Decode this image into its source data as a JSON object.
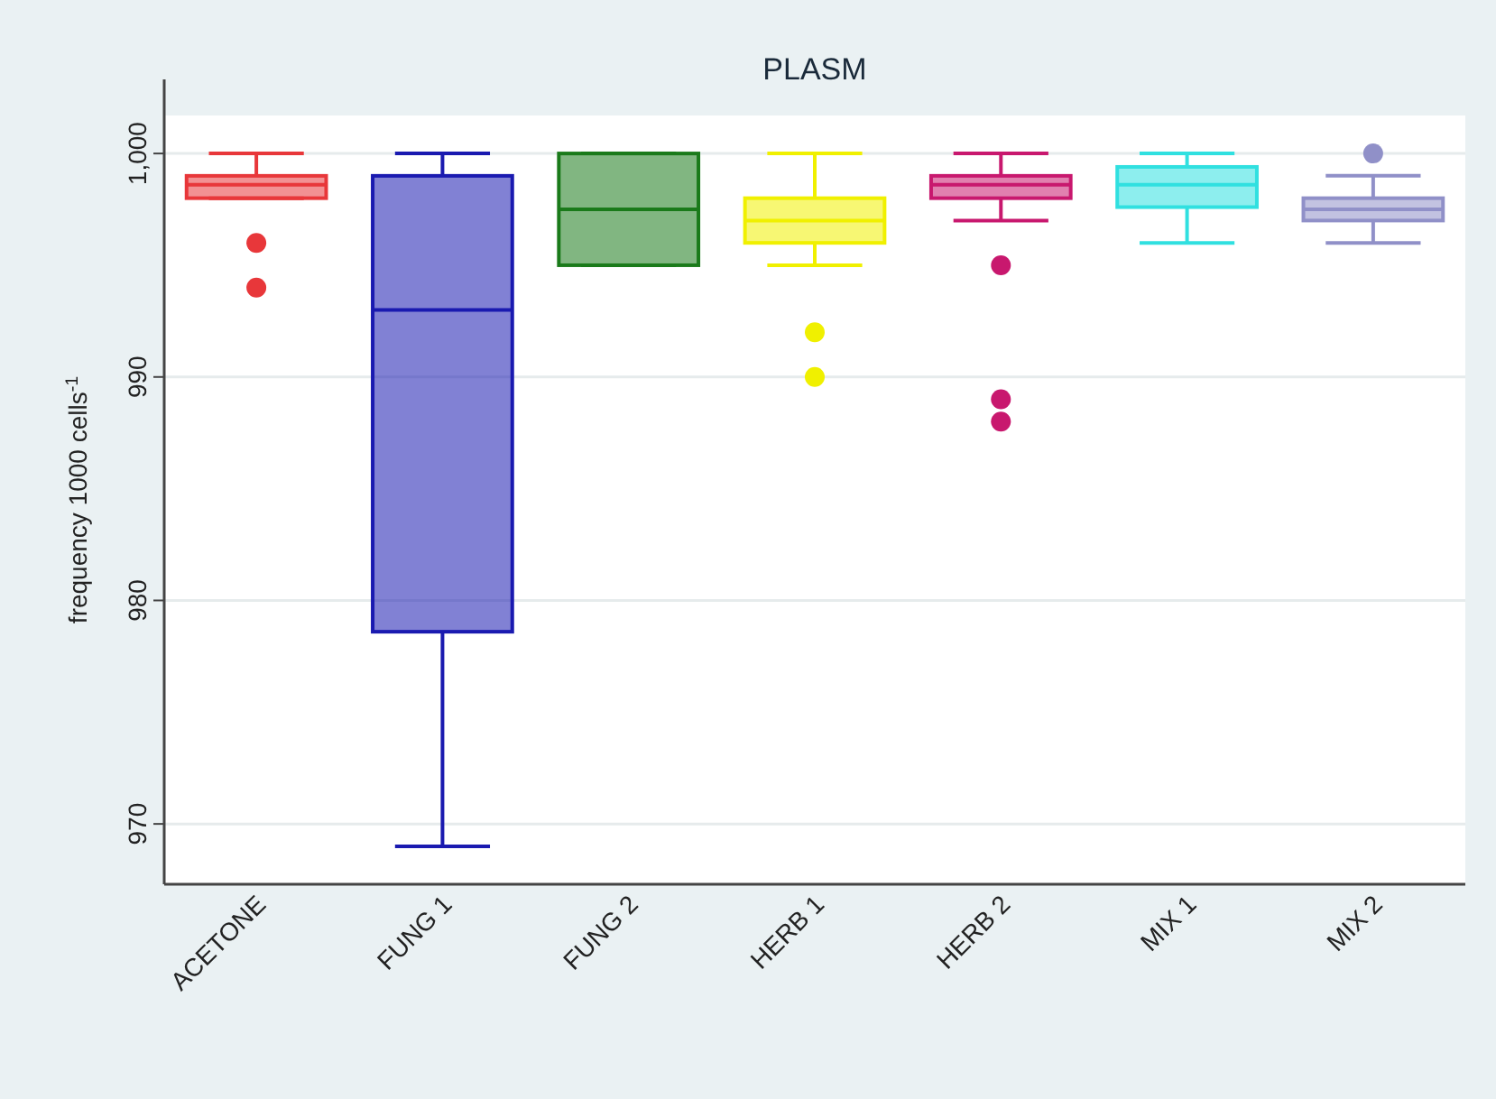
{
  "chart_data": {
    "type": "box",
    "title": "PLASM",
    "ylabel": "frequency 1000 cells$^{-1}$",
    "categories": [
      "ACETONE",
      "FUNG 1",
      "FUNG 2",
      "HERB 1",
      "HERB 2",
      "MIX 1",
      "MIX 2"
    ],
    "colors": [
      "#e8373a",
      "#1a1ab0",
      "#1a7a1a",
      "#f0f000",
      "#c8186e",
      "#30e0e0",
      "#9090c8"
    ],
    "boxes": [
      {
        "low": 998,
        "q1": 998,
        "median": 998.6,
        "q3": 999,
        "high": 1000,
        "outliers": [
          996,
          994
        ]
      },
      {
        "low": 969,
        "q1": 978.6,
        "median": 993,
        "q3": 999,
        "high": 1000
      },
      {
        "low": 995,
        "q1": 995,
        "median": 997.5,
        "q3": 1000,
        "high": 1000
      },
      {
        "low": 995,
        "q1": 996,
        "median": 997,
        "q3": 998,
        "high": 1000,
        "outliers": [
          992,
          990
        ]
      },
      {
        "low": 997,
        "q1": 998,
        "median": 998.6,
        "q3": 999,
        "high": 1000,
        "outliers": [
          995,
          989,
          988
        ]
      },
      {
        "low": 996,
        "q1": 997.6,
        "median": 998.6,
        "q3": 999.4,
        "high": 1000
      },
      {
        "low": 996,
        "q1": 997,
        "median": 997.5,
        "q3": 998,
        "high": 999,
        "outliers": [
          1000
        ]
      }
    ],
    "ylim": [
      967.3,
      1001.7
    ],
    "yticks": [
      970,
      980,
      990,
      {
        "value": 1000,
        "label": "1,000"
      }
    ],
    "grid": "y"
  }
}
